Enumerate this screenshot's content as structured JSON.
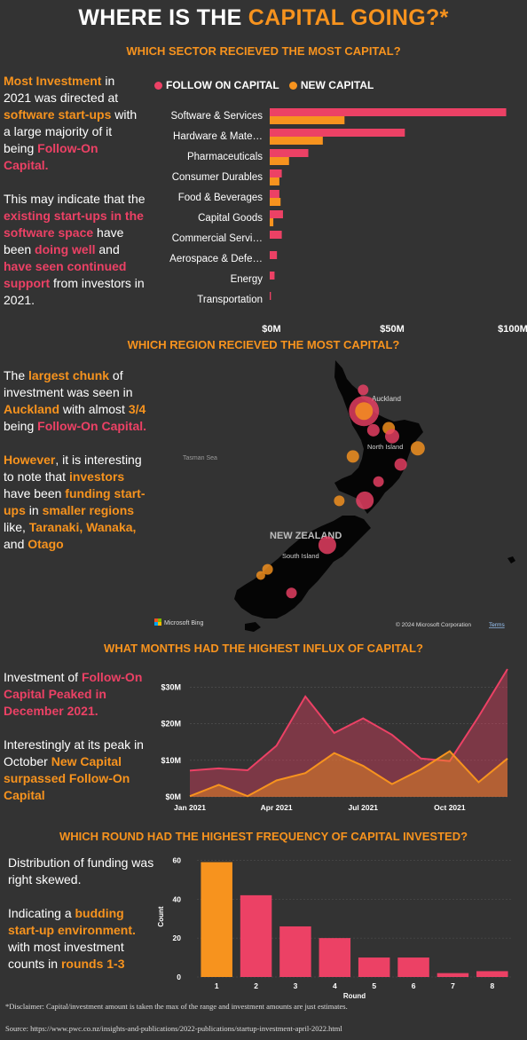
{
  "title": {
    "prefix": "WHERE IS THE ",
    "highlight": "CAPITAL GOING?*"
  },
  "sections": {
    "sector": "WHICH SECTOR RECIEVED THE MOST CAPITAL?",
    "region": "WHICH REGION RECIEVED THE MOST CAPITAL?",
    "months": "WHAT MONTHS HAD THE HIGHEST INFLUX OF CAPITAL?",
    "round": "WHICH ROUND HAD THE HIGHEST FREQUENCY OF CAPITAL INVESTED?"
  },
  "text_sector": {
    "p1": [
      "Most Investment",
      " in 2021 was directed at ",
      "software start-ups",
      " with a large majority of it being ",
      "Follow-On Capital."
    ],
    "p2": [
      "This may indicate that the ",
      "existing start-ups in the software space",
      " have been ",
      "doing well",
      " and ",
      "have seen continued support",
      " from investors in 2021."
    ]
  },
  "text_region": {
    "p1": [
      "The ",
      "largest chunk",
      " of investment was seen in ",
      "Auckland",
      " with almost ",
      "3/4",
      " being ",
      "Follow-On Capital."
    ],
    "p2": [
      "However",
      ", it is interesting to note that ",
      "investors",
      " have been ",
      "funding start-ups",
      " in ",
      "smaller regions",
      " like, ",
      "Taranaki, Wanaka,",
      " and ",
      "Otago"
    ]
  },
  "text_months": {
    "p1": [
      "Investment of ",
      "Follow-On Capital Peaked in December 2021."
    ],
    "p2": [
      "Interestingly at its peak in October ",
      "New Capital surpassed Follow-On Capital"
    ]
  },
  "text_round": {
    "p1": "Distribution of funding was right skewed.",
    "p2": [
      "Indicating a ",
      "budding start-up environment.",
      " with most investment counts in ",
      "rounds 1-3"
    ]
  },
  "map_labels": {
    "country": "NEW ZEALAND",
    "sea": "Tasman Sea",
    "north": "North Island",
    "south": "South Island",
    "auckland": "Auckland",
    "bing": "Microsoft Bing",
    "copyright": "© 2024 Microsoft Corporation",
    "terms": "Terms"
  },
  "colors": {
    "follow_on": "#EC4165",
    "new": "#F7931E",
    "bg": "#333333"
  },
  "footnote": "*Disclaimer: Capital/investment amount is taken the max of the range and investment amounts are just estimates.",
  "source": "Source: https://www.pwc.co.nz/insights-and-publications/2022-publications/startup-investment-april-2022.html",
  "chart_data": [
    {
      "type": "bar",
      "orientation": "horizontal",
      "categories": [
        "Software & Services",
        "Hardware & Mate…",
        "Pharmaceuticals",
        "Consumer Durables",
        "Food & Beverages",
        "Capital Goods",
        "Commercial Servi…",
        "Aerospace & Defe…",
        "Energy",
        "Transportation"
      ],
      "series": [
        {
          "name": "FOLLOW ON CAPITAL",
          "values": [
            98,
            56,
            16,
            5,
            4,
            5.5,
            5,
            3,
            2,
            0.5
          ]
        },
        {
          "name": "NEW CAPITAL",
          "values": [
            31,
            22,
            8,
            4,
            4.5,
            1.5,
            0,
            0,
            0,
            0
          ]
        }
      ],
      "xticks": [
        "$0M",
        "$50M",
        "$100M"
      ],
      "xlim": [
        0,
        100
      ]
    },
    {
      "type": "area",
      "x": [
        "2021-01",
        "2021-02",
        "2021-03",
        "2021-04",
        "2021-05",
        "2021-06",
        "2021-07",
        "2021-08",
        "2021-09",
        "2021-10",
        "2021-11",
        "2021-12"
      ],
      "xticks": [
        "Jan 2021",
        "Apr 2021",
        "Jul 2021",
        "Oct 2021"
      ],
      "yticks": [
        "$0M",
        "$10M",
        "$20M",
        "$30M"
      ],
      "ylim": [
        0,
        35
      ],
      "series": [
        {
          "name": "FOLLOW ON CAPITAL",
          "values": [
            7.2,
            7.8,
            7.3,
            14,
            27.5,
            17.5,
            21.5,
            17,
            10.5,
            9.8,
            22,
            35
          ]
        },
        {
          "name": "NEW CAPITAL",
          "values": [
            0.2,
            3.3,
            0.2,
            4.5,
            6.5,
            12,
            8.5,
            3.5,
            7.5,
            12.5,
            4,
            10.5
          ]
        }
      ]
    },
    {
      "type": "bar",
      "categories": [
        "1",
        "2",
        "3",
        "4",
        "5",
        "6",
        "7",
        "8"
      ],
      "values": [
        59,
        42,
        26,
        20,
        10,
        10,
        2,
        3
      ],
      "xlabel": "Round",
      "ylabel": "Count",
      "yticks": [
        "0",
        "20",
        "40",
        "60"
      ],
      "ylim": [
        0,
        62
      ],
      "colors": [
        "#F7931E",
        "#EC4165",
        "#EC4165",
        "#EC4165",
        "#EC4165",
        "#EC4165",
        "#EC4165",
        "#EC4165"
      ]
    }
  ],
  "map_points": [
    {
      "lon": 174.7,
      "lat": -35.8,
      "size": 6,
      "color": "pink"
    },
    {
      "lon": 174.75,
      "lat": -36.85,
      "size": 17,
      "color": "pink"
    },
    {
      "lon": 174.75,
      "lat": -36.85,
      "size": 10,
      "color": "orange"
    },
    {
      "lon": 175.3,
      "lat": -37.8,
      "size": 7,
      "color": "pink"
    },
    {
      "lon": 176.2,
      "lat": -37.7,
      "size": 7,
      "color": "orange"
    },
    {
      "lon": 176.4,
      "lat": -38.1,
      "size": 8,
      "color": "pink"
    },
    {
      "lon": 177.9,
      "lat": -38.7,
      "size": 8,
      "color": "orange"
    },
    {
      "lon": 176.9,
      "lat": -39.5,
      "size": 7,
      "color": "pink"
    },
    {
      "lon": 174.1,
      "lat": -39.1,
      "size": 7,
      "color": "orange"
    },
    {
      "lon": 175.6,
      "lat": -40.35,
      "size": 6,
      "color": "pink"
    },
    {
      "lon": 174.8,
      "lat": -41.28,
      "size": 10,
      "color": "pink"
    },
    {
      "lon": 173.3,
      "lat": -41.3,
      "size": 6,
      "color": "orange"
    },
    {
      "lon": 172.6,
      "lat": -43.5,
      "size": 10,
      "color": "pink"
    },
    {
      "lon": 169.1,
      "lat": -44.7,
      "size": 6,
      "color": "orange"
    },
    {
      "lon": 168.7,
      "lat": -45.0,
      "size": 5,
      "color": "orange"
    },
    {
      "lon": 170.5,
      "lat": -45.87,
      "size": 6,
      "color": "pink"
    }
  ]
}
